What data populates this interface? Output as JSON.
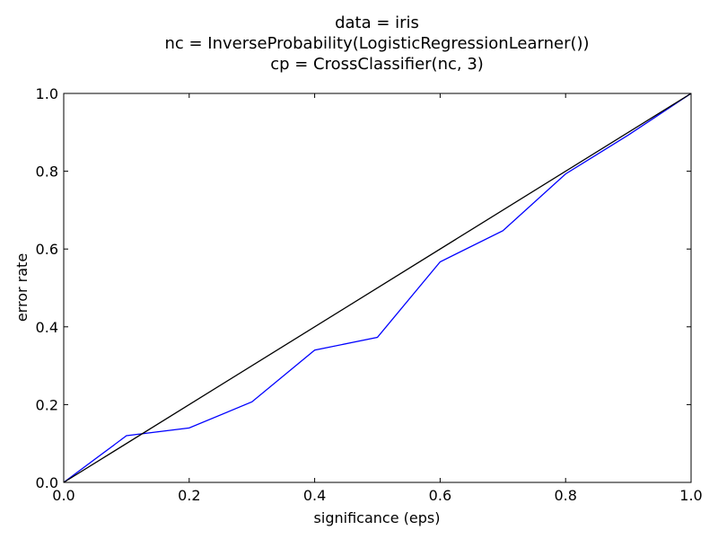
{
  "chart_data": {
    "type": "line",
    "title_lines": [
      "data = iris",
      "nc = InverseProbability(LogisticRegressionLearner())",
      "cp = CrossClassifier(nc, 3)"
    ],
    "xlabel": "significance (eps)",
    "ylabel": "error rate",
    "xlim": [
      0.0,
      1.0
    ],
    "ylim": [
      0.0,
      1.0
    ],
    "xticks": [
      "0.0",
      "0.2",
      "0.4",
      "0.6",
      "0.8",
      "1.0"
    ],
    "yticks": [
      "0.0",
      "0.2",
      "0.4",
      "0.6",
      "0.8",
      "1.0"
    ],
    "grid": false,
    "series": [
      {
        "color": "#0000ff",
        "x": [
          0.0,
          0.1,
          0.2,
          0.3,
          0.4,
          0.5,
          0.6,
          0.7,
          0.8,
          0.9,
          1.0
        ],
        "y": [
          0.0,
          0.12,
          0.14,
          0.207,
          0.34,
          0.373,
          0.567,
          0.647,
          0.793,
          0.893,
          1.0
        ]
      },
      {
        "color": "#000000",
        "x": [
          0.0,
          1.0
        ],
        "y": [
          0.0,
          1.0
        ]
      }
    ]
  }
}
